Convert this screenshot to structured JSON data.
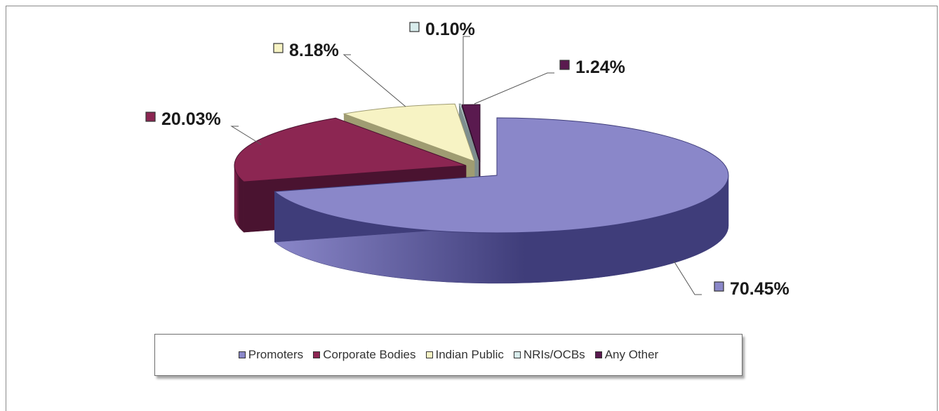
{
  "chart_data": {
    "type": "pie",
    "labels": [
      "Promoters",
      "Corporate Bodies",
      "Indian Public",
      "NRIs/OCBs",
      "Any Other"
    ],
    "values": [
      70.45,
      20.03,
      8.18,
      0.1,
      1.24
    ],
    "data_labels": [
      "70.45%",
      "20.03%",
      "8.18%",
      "0.10%",
      "1.24%"
    ],
    "colors": [
      "#8a87c9",
      "#8c2652",
      "#f7f3c4",
      "#d8ecec",
      "#5a1a4f"
    ],
    "dark_colors": [
      "#3f3d7a",
      "#4a1330",
      "#9f9c72",
      "#7e8e8e",
      "#2d0c28"
    ],
    "legend_placement": "bottom",
    "style": "3d-exploded"
  }
}
